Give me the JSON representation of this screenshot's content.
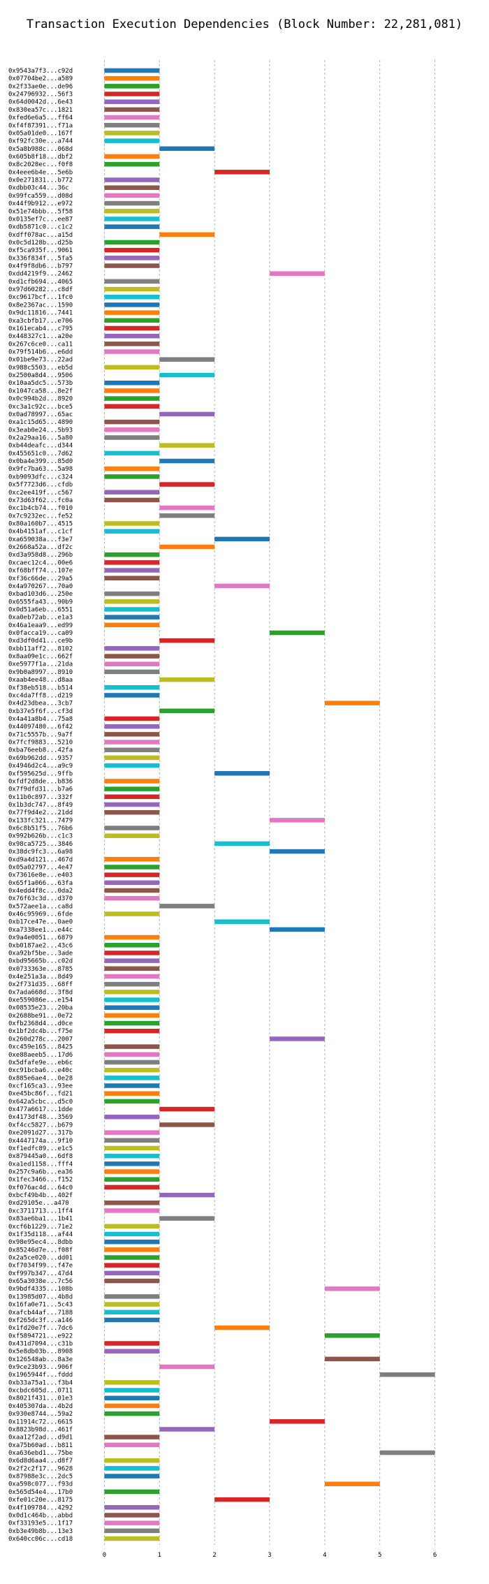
{
  "chart_data": {
    "type": "bar",
    "orientation": "horizontal-range",
    "title": "Transaction Execution Dependencies (Block Number: 22,281,081)",
    "xlabel": "",
    "ylabel": "",
    "xlim": [
      -0.5,
      6.5
    ],
    "x_ticks": [
      0,
      1,
      2,
      3,
      4,
      5,
      6
    ],
    "grid": true,
    "palette": [
      "#1f77b4",
      "#ff7f0e",
      "#2ca02c",
      "#d62728",
      "#9467bd",
      "#8c564b",
      "#e377c2",
      "#7f7f7f",
      "#bcbd22",
      "#17becf"
    ],
    "transactions": [
      [
        "0x9543a7f3...c92d",
        0,
        1
      ],
      [
        "0x07704be2...a589",
        0,
        1
      ],
      [
        "0x2f33ae0e...de96",
        0,
        1
      ],
      [
        "0x24796932...56f3",
        0,
        1
      ],
      [
        "0x64d0042d...6e43",
        0,
        1
      ],
      [
        "0x830ea57c...1821",
        0,
        1
      ],
      [
        "0xfed6e6a5...ff64",
        0,
        1
      ],
      [
        "0xf4f87391...f71a",
        0,
        1
      ],
      [
        "0x05a01de0...167f",
        0,
        1
      ],
      [
        "0xf92fc30e...a744",
        0,
        1
      ],
      [
        "0x5a8b988c...068d",
        1,
        2
      ],
      [
        "0x605b8f18...dbf2",
        0,
        1
      ],
      [
        "0x8c2028ec...f0f8",
        0,
        1
      ],
      [
        "0x4eee6b4e...5e6b",
        2,
        3
      ],
      [
        "0x0e271831...b772",
        0,
        1
      ],
      [
        "0xdbb03c44...36c",
        0,
        1
      ],
      [
        "0x99fca559...d08d",
        0,
        1
      ],
      [
        "0x44f9b912...e972",
        0,
        1
      ],
      [
        "0x51e74bbb...5f58",
        0,
        1
      ],
      [
        "0x0135ef7c...ee87",
        0,
        1
      ],
      [
        "0xdb5871c0...c1c2",
        0,
        1
      ],
      [
        "0xdff078ac...a15d",
        1,
        2
      ],
      [
        "0x0c5d128b...d25b",
        0,
        1
      ],
      [
        "0xf5ca935f...9061",
        0,
        1
      ],
      [
        "0x336f834f...5fa5",
        0,
        1
      ],
      [
        "0x4f9f8db6...b797",
        0,
        1
      ],
      [
        "0xdd4219f9...2462",
        3,
        4
      ],
      [
        "0xd1cfb694...4065",
        0,
        1
      ],
      [
        "0x97d60282...c8df",
        0,
        1
      ],
      [
        "0xc9617bcf...1fc0",
        0,
        1
      ],
      [
        "0x8e2367ac...1590",
        0,
        1
      ],
      [
        "0x9dc11816...7441",
        0,
        1
      ],
      [
        "0xa3cbfb17...e706",
        0,
        1
      ],
      [
        "0x161ecab4...c795",
        0,
        1
      ],
      [
        "0x448327c1...a20e",
        0,
        1
      ],
      [
        "0x267c6ce0...ca11",
        0,
        1
      ],
      [
        "0x79f514b6...e6dd",
        0,
        1
      ],
      [
        "0x01be9e73...22ad",
        1,
        2
      ],
      [
        "0x988c5503...eb5d",
        0,
        1
      ],
      [
        "0x2500a8d4...9506",
        1,
        2
      ],
      [
        "0x10aa5dc5...573b",
        0,
        1
      ],
      [
        "0x1047ca58...8e2f",
        0,
        1
      ],
      [
        "0x0c994b2d...8920",
        0,
        1
      ],
      [
        "0xc3a1c92c...bce5",
        0,
        1
      ],
      [
        "0x0ad78997...65ac",
        1,
        2
      ],
      [
        "0xa1c15d65...4890",
        0,
        1
      ],
      [
        "0x3eab0e24...5b93",
        0,
        1
      ],
      [
        "0x2a29aa16...5a80",
        0,
        1
      ],
      [
        "0xb44deafc...d344",
        1,
        2
      ],
      [
        "0x455651c0...7d62",
        0,
        1
      ],
      [
        "0x0ba4e399...85d0",
        1,
        2
      ],
      [
        "0x9fc7ba63...5a98",
        0,
        1
      ],
      [
        "0xb9093dfc...c324",
        0,
        1
      ],
      [
        "0x5f7723d6...cfdb",
        1,
        2
      ],
      [
        "0xc2ee419f...c567",
        0,
        1
      ],
      [
        "0x73d63f62...fc0a",
        0,
        1
      ],
      [
        "0xc1b4cb74...f010",
        1,
        2
      ],
      [
        "0x7c9232ec...fe52",
        1,
        2
      ],
      [
        "0x80a160b7...4515",
        0,
        1
      ],
      [
        "0x4b4151af...c1cf",
        0,
        1
      ],
      [
        "0xa659038a...f3e7",
        2,
        3
      ],
      [
        "0x2668a52a...df2c",
        1,
        2
      ],
      [
        "0xd3a958d8...296b",
        0,
        1
      ],
      [
        "0xcaec12c4...00e6",
        0,
        1
      ],
      [
        "0xf68bff74...107e",
        0,
        1
      ],
      [
        "0xf36c66de...29a5",
        0,
        1
      ],
      [
        "0x4a970267...70a0",
        2,
        3
      ],
      [
        "0xbad103d6...250e",
        0,
        1
      ],
      [
        "0x6555fa43...90b9",
        0,
        1
      ],
      [
        "0x0d51a6eb...6551",
        0,
        1
      ],
      [
        "0xa0eb72ab...e1a3",
        0,
        1
      ],
      [
        "0x46a1eaa9...ed99",
        0,
        1
      ],
      [
        "0x0facca19...ca09",
        3,
        4
      ],
      [
        "0xd3df0d41...ce9b",
        1,
        2
      ],
      [
        "0xbb11aff2...8102",
        0,
        1
      ],
      [
        "0x8aa09e1c...662f",
        0,
        1
      ],
      [
        "0xe5977f1a...21da",
        0,
        1
      ],
      [
        "0x9b0a8997...8910",
        0,
        1
      ],
      [
        "0xaab4ee48...d8aa",
        1,
        2
      ],
      [
        "0xf38eb518...b514",
        0,
        1
      ],
      [
        "0xc4da7ff8...d219",
        0,
        1
      ],
      [
        "0x4d23dbea...3cb7",
        4,
        5
      ],
      [
        "0xb37e5f6f...cf3d",
        1,
        2
      ],
      [
        "0x4a41a8b4...75a8",
        0,
        1
      ],
      [
        "0x44097480...6f42",
        0,
        1
      ],
      [
        "0x71c5557b...9a7f",
        0,
        1
      ],
      [
        "0x7fcf9883...5210",
        0,
        1
      ],
      [
        "0xba76eeb8...42fa",
        0,
        1
      ],
      [
        "0x69b962dd...9357",
        0,
        1
      ],
      [
        "0x4946d2c4...a9c9",
        0,
        1
      ],
      [
        "0xf595625d...9ffb",
        2,
        3
      ],
      [
        "0xfdf2d8de...b836",
        0,
        1
      ],
      [
        "0x7f9dfd31...b7a6",
        0,
        1
      ],
      [
        "0x11b0c897...332f",
        0,
        1
      ],
      [
        "0x1b3dc747...8f49",
        0,
        1
      ],
      [
        "0x77f9d4e2...21dd",
        0,
        1
      ],
      [
        "0x133fc321...7479",
        3,
        4
      ],
      [
        "0x6c8b51f5...76b6",
        0,
        1
      ],
      [
        "0x992b626b...c1c3",
        0,
        1
      ],
      [
        "0x98ca5725...3846",
        2,
        3
      ],
      [
        "0x38dc9fc3...6a98",
        3,
        4
      ],
      [
        "0xd9a4d121...467d",
        0,
        1
      ],
      [
        "0x05a02797...4e47",
        0,
        1
      ],
      [
        "0x73616e8e...e403",
        0,
        1
      ],
      [
        "0x65f1a066...63fa",
        0,
        1
      ],
      [
        "0x4edd4f8c...0da2",
        0,
        1
      ],
      [
        "0x76f63c3d...d370",
        0,
        1
      ],
      [
        "0x572aee1a...ca8d",
        1,
        2
      ],
      [
        "0x46c95969...6fde",
        0,
        1
      ],
      [
        "0xb17ce47e...0ae0",
        2,
        3
      ],
      [
        "0xa7338ee1...e44c",
        3,
        4
      ],
      [
        "0x9a4e0051...6879",
        0,
        1
      ],
      [
        "0xb0187ae2...43c6",
        0,
        1
      ],
      [
        "0xa92bf5be...3ade",
        0,
        1
      ],
      [
        "0xbd95665b...c02d",
        0,
        1
      ],
      [
        "0x0733363e...8785",
        0,
        1
      ],
      [
        "0x4e251a3a...8d49",
        0,
        1
      ],
      [
        "0x2f731d35...68ff",
        0,
        1
      ],
      [
        "0x7ada668d...3f8d",
        0,
        1
      ],
      [
        "0xe559086e...e154",
        0,
        1
      ],
      [
        "0x08535e23...20ba",
        0,
        1
      ],
      [
        "0x2688be91...0e72",
        0,
        1
      ],
      [
        "0xfb2368d4...d0ce",
        0,
        1
      ],
      [
        "0x1bf2dc4b...f75e",
        0,
        1
      ],
      [
        "0x260d278c...2007",
        3,
        4
      ],
      [
        "0xc459e165...8425",
        0,
        1
      ],
      [
        "0xe88aeeb5...17d6",
        0,
        1
      ],
      [
        "0x5dfafe9e...eb6c",
        0,
        1
      ],
      [
        "0xc91bcba6...e40c",
        0,
        1
      ],
      [
        "0x885e6ae4...0e28",
        0,
        1
      ],
      [
        "0xcf165ca3...93ee",
        0,
        1
      ],
      [
        "0xe45bc86f...fd21",
        0,
        1
      ],
      [
        "0x642a5cbc...d5c0",
        0,
        1
      ],
      [
        "0x477a6617...1dde",
        1,
        2
      ],
      [
        "0x4173df48...3569",
        0,
        1
      ],
      [
        "0xf4cc5827...b679",
        1,
        2
      ],
      [
        "0xe2091d27...317b",
        0,
        1
      ],
      [
        "0x4447174a...9f10",
        0,
        1
      ],
      [
        "0xf1edfc89...e1c5",
        0,
        1
      ],
      [
        "0x879445a0...6df8",
        0,
        1
      ],
      [
        "0xa1ed1158...fff4",
        0,
        1
      ],
      [
        "0x257c9a6b...ea36",
        0,
        1
      ],
      [
        "0x1fec3466...f152",
        0,
        1
      ],
      [
        "0xf076ac4d...64c0",
        0,
        1
      ],
      [
        "0xbcf49b4b...402f",
        1,
        2
      ],
      [
        "0xd29105e...a470",
        0,
        1
      ],
      [
        "0xc3711713...1ff4",
        0,
        1
      ],
      [
        "0x83ae6ba1...1b41",
        1,
        2
      ],
      [
        "0xcf6b1229...71e2",
        0,
        1
      ],
      [
        "0x1f35d118...af44",
        0,
        1
      ],
      [
        "0x98e95ec4...8dbb",
        0,
        1
      ],
      [
        "0x85246d7e...f08f",
        0,
        1
      ],
      [
        "0x2a5ce020...dd01",
        0,
        1
      ],
      [
        "0xf7034f99...f47e",
        0,
        1
      ],
      [
        "0xf997b347...47d4",
        0,
        1
      ],
      [
        "0x65a3038e...7c56",
        0,
        1
      ],
      [
        "0x9bdf4335...108b",
        4,
        5
      ],
      [
        "0x13985d07...4b8d",
        0,
        1
      ],
      [
        "0x16fa0e71...5c43",
        0,
        1
      ],
      [
        "0xafcb44af...7188",
        0,
        1
      ],
      [
        "0xf265dc3f...a146",
        0,
        1
      ],
      [
        "0x1fd20e7f...7dc6",
        2,
        3
      ],
      [
        "0xf5894721...e922",
        4,
        5
      ],
      [
        "0x431d7094...c31b",
        0,
        1
      ],
      [
        "0x5e8db03b...8908",
        0,
        1
      ],
      [
        "0x126548ab...8a3e",
        4,
        5
      ],
      [
        "0x9ce23b93...906f",
        1,
        2
      ],
      [
        "0x1965944f...fddd",
        5,
        6
      ],
      [
        "0xb33a75a1...f3b4",
        0,
        1
      ],
      [
        "0xcbdc605d...0711",
        0,
        1
      ],
      [
        "0x8021f431...01e3",
        0,
        1
      ],
      [
        "0x405307da...4b2d",
        0,
        1
      ],
      [
        "0x930e8744...59a2",
        0,
        1
      ],
      [
        "0x11914c72...6615",
        3,
        4
      ],
      [
        "0x8823b98d...461f",
        1,
        2
      ],
      [
        "0xaa12f2ad...d9d1",
        0,
        1
      ],
      [
        "0xa75b60ad...b811",
        0,
        1
      ],
      [
        "0xa636ebd1...75be",
        5,
        6
      ],
      [
        "0x6d8d6aa4...d8f7",
        0,
        1
      ],
      [
        "0x2f2c2f17...9628",
        0,
        1
      ],
      [
        "0x87988e3c...2dc5",
        0,
        1
      ],
      [
        "0xa598c077...f93d",
        4,
        5
      ],
      [
        "0x565d54e4...17b0",
        0,
        1
      ],
      [
        "0xfe01c20e...8175",
        2,
        3
      ],
      [
        "0x4f109784...4292",
        0,
        1
      ],
      [
        "0x0d1c464b...abbd",
        0,
        1
      ],
      [
        "0xf33193e5...1f17",
        0,
        1
      ],
      [
        "0xb3e49b8b...13e3",
        0,
        1
      ],
      [
        "0x640cc06c...cd18",
        0,
        1
      ]
    ]
  }
}
